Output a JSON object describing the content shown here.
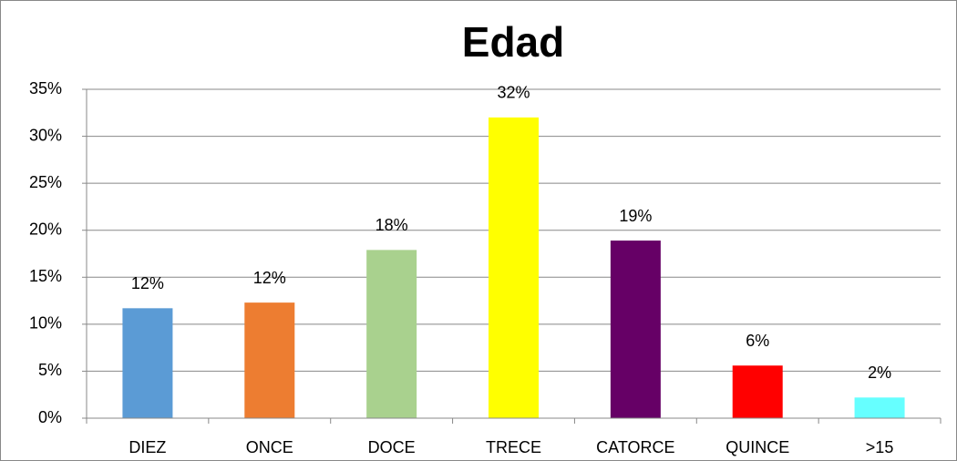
{
  "chart_data": {
    "type": "bar",
    "title": "Edad",
    "categories": [
      "DIEZ",
      "ONCE",
      "DOCE",
      "TRECE",
      "CATORCE",
      "QUINCE",
      ">15"
    ],
    "values": [
      11.7,
      12.3,
      17.9,
      32,
      18.9,
      5.6,
      2.2
    ],
    "value_labels": [
      "12%",
      "12%",
      "18%",
      "32%",
      "19%",
      "6%",
      "2%"
    ],
    "colors": [
      "#5b9bd5",
      "#ed7d31",
      "#a9d18e",
      "#ffff00",
      "#660066",
      "#ff0000",
      "#66ffff"
    ],
    "ylim": [
      0,
      35
    ],
    "yticks": [
      {
        "value": 0,
        "label": "0%"
      },
      {
        "value": 5,
        "label": "5%"
      },
      {
        "value": 10,
        "label": "10%"
      },
      {
        "value": 15,
        "label": "15%"
      },
      {
        "value": 20,
        "label": "20%"
      },
      {
        "value": 25,
        "label": "25%"
      },
      {
        "value": 30,
        "label": "30%"
      },
      {
        "value": 35,
        "label": "35%"
      }
    ],
    "grid": true
  }
}
